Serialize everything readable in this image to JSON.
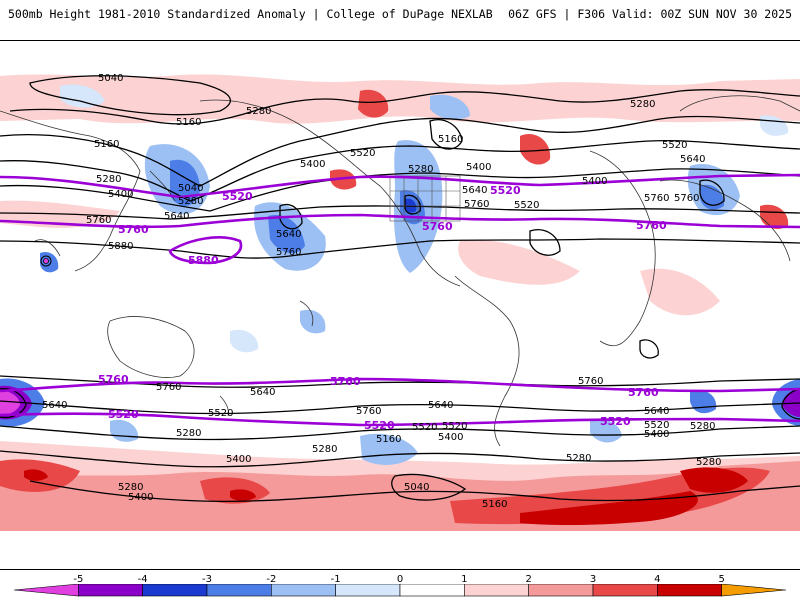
{
  "header": {
    "title_left": "500mb Height 1981-2010 Standardized Anomaly | College of DuPage NEXLAB",
    "title_right": "06Z GFS | F306 Valid: 00Z SUN NOV 30 2025"
  },
  "contours": {
    "black_labels": [
      "5040",
      "5160",
      "5280",
      "5400",
      "5520",
      "5640",
      "5760",
      "5880"
    ],
    "purple_labels": [
      "5520",
      "5760",
      "5880"
    ]
  },
  "colorbar": {
    "ticks": [
      "-5",
      "-4",
      "-3",
      "-2",
      "-1",
      "0",
      "1",
      "2",
      "3",
      "4",
      "5"
    ],
    "colors": [
      "#e040e0",
      "#8a00c8",
      "#1a3ad0",
      "#4d7ee8",
      "#9cc0f4",
      "#d6e6fb",
      "#ffffff",
      "#fcd2d2",
      "#f59a9a",
      "#e84848",
      "#c80000",
      "#f59d00"
    ]
  },
  "map_labels": [
    {
      "id": "l1",
      "text": "5040"
    },
    {
      "id": "l2",
      "text": "5160"
    },
    {
      "id": "l3",
      "text": "5280"
    },
    {
      "id": "l4",
      "text": "5160"
    },
    {
      "id": "l5",
      "text": "5400"
    },
    {
      "id": "l6",
      "text": "5520"
    },
    {
      "id": "l7",
      "text": "5040"
    },
    {
      "id": "l8",
      "text": "5280"
    },
    {
      "id": "l9",
      "text": "5400"
    },
    {
      "id": "l10",
      "text": "5640"
    },
    {
      "id": "l11",
      "text": "5760"
    },
    {
      "id": "l12",
      "text": "5880"
    },
    {
      "id": "l13",
      "text": "5640"
    },
    {
      "id": "l14",
      "text": "5760"
    },
    {
      "id": "l15",
      "text": "5280"
    },
    {
      "id": "l16",
      "text": "5160"
    },
    {
      "id": "l17",
      "text": "5400"
    },
    {
      "id": "l18",
      "text": "5640"
    },
    {
      "id": "l19",
      "text": "5760"
    },
    {
      "id": "l20",
      "text": "5520"
    },
    {
      "id": "l21",
      "text": "5280"
    },
    {
      "id": "l22",
      "text": "5520"
    },
    {
      "id": "l23",
      "text": "5400"
    },
    {
      "id": "l24",
      "text": "5640"
    },
    {
      "id": "l25",
      "text": "5760"
    },
    {
      "id": "l26",
      "text": "5760"
    },
    {
      "id": "l27",
      "text": "5640"
    },
    {
      "id": "l28",
      "text": "5520"
    },
    {
      "id": "l29",
      "text": "5280"
    },
    {
      "id": "l30",
      "text": "5400"
    },
    {
      "id": "l31",
      "text": "5280"
    },
    {
      "id": "l32",
      "text": "5760"
    },
    {
      "id": "l33",
      "text": "5640"
    },
    {
      "id": "l34",
      "text": "5520"
    },
    {
      "id": "l35",
      "text": "5400"
    },
    {
      "id": "l36",
      "text": "5160"
    },
    {
      "id": "l37",
      "text": "5040"
    },
    {
      "id": "l38",
      "text": "5160"
    },
    {
      "id": "l39",
      "text": "5280"
    },
    {
      "id": "l40",
      "text": "5400"
    },
    {
      "id": "l41",
      "text": "5280"
    },
    {
      "id": "l42",
      "text": "5280"
    },
    {
      "id": "l43",
      "text": "5280"
    },
    {
      "id": "l44",
      "text": "5640"
    },
    {
      "id": "l45",
      "text": "5760"
    },
    {
      "id": "l46",
      "text": "5640"
    },
    {
      "id": "l47",
      "text": "5520"
    },
    {
      "id": "l48",
      "text": "5400"
    },
    {
      "id": "l49",
      "text": "5520"
    },
    {
      "id": "l50",
      "text": "5280"
    },
    {
      "id": "l51",
      "text": "5760"
    },
    {
      "id": "p1",
      "text": "5520"
    },
    {
      "id": "p2",
      "text": "5520"
    },
    {
      "id": "p3",
      "text": "5760"
    },
    {
      "id": "p4",
      "text": "5760"
    },
    {
      "id": "p5",
      "text": "5760"
    },
    {
      "id": "p6",
      "text": "5880"
    },
    {
      "id": "p7",
      "text": "5760"
    },
    {
      "id": "p8",
      "text": "5760"
    },
    {
      "id": "p9",
      "text": "5760"
    },
    {
      "id": "p10",
      "text": "5520"
    },
    {
      "id": "p11",
      "text": "5520"
    },
    {
      "id": "p12",
      "text": "5520"
    }
  ]
}
